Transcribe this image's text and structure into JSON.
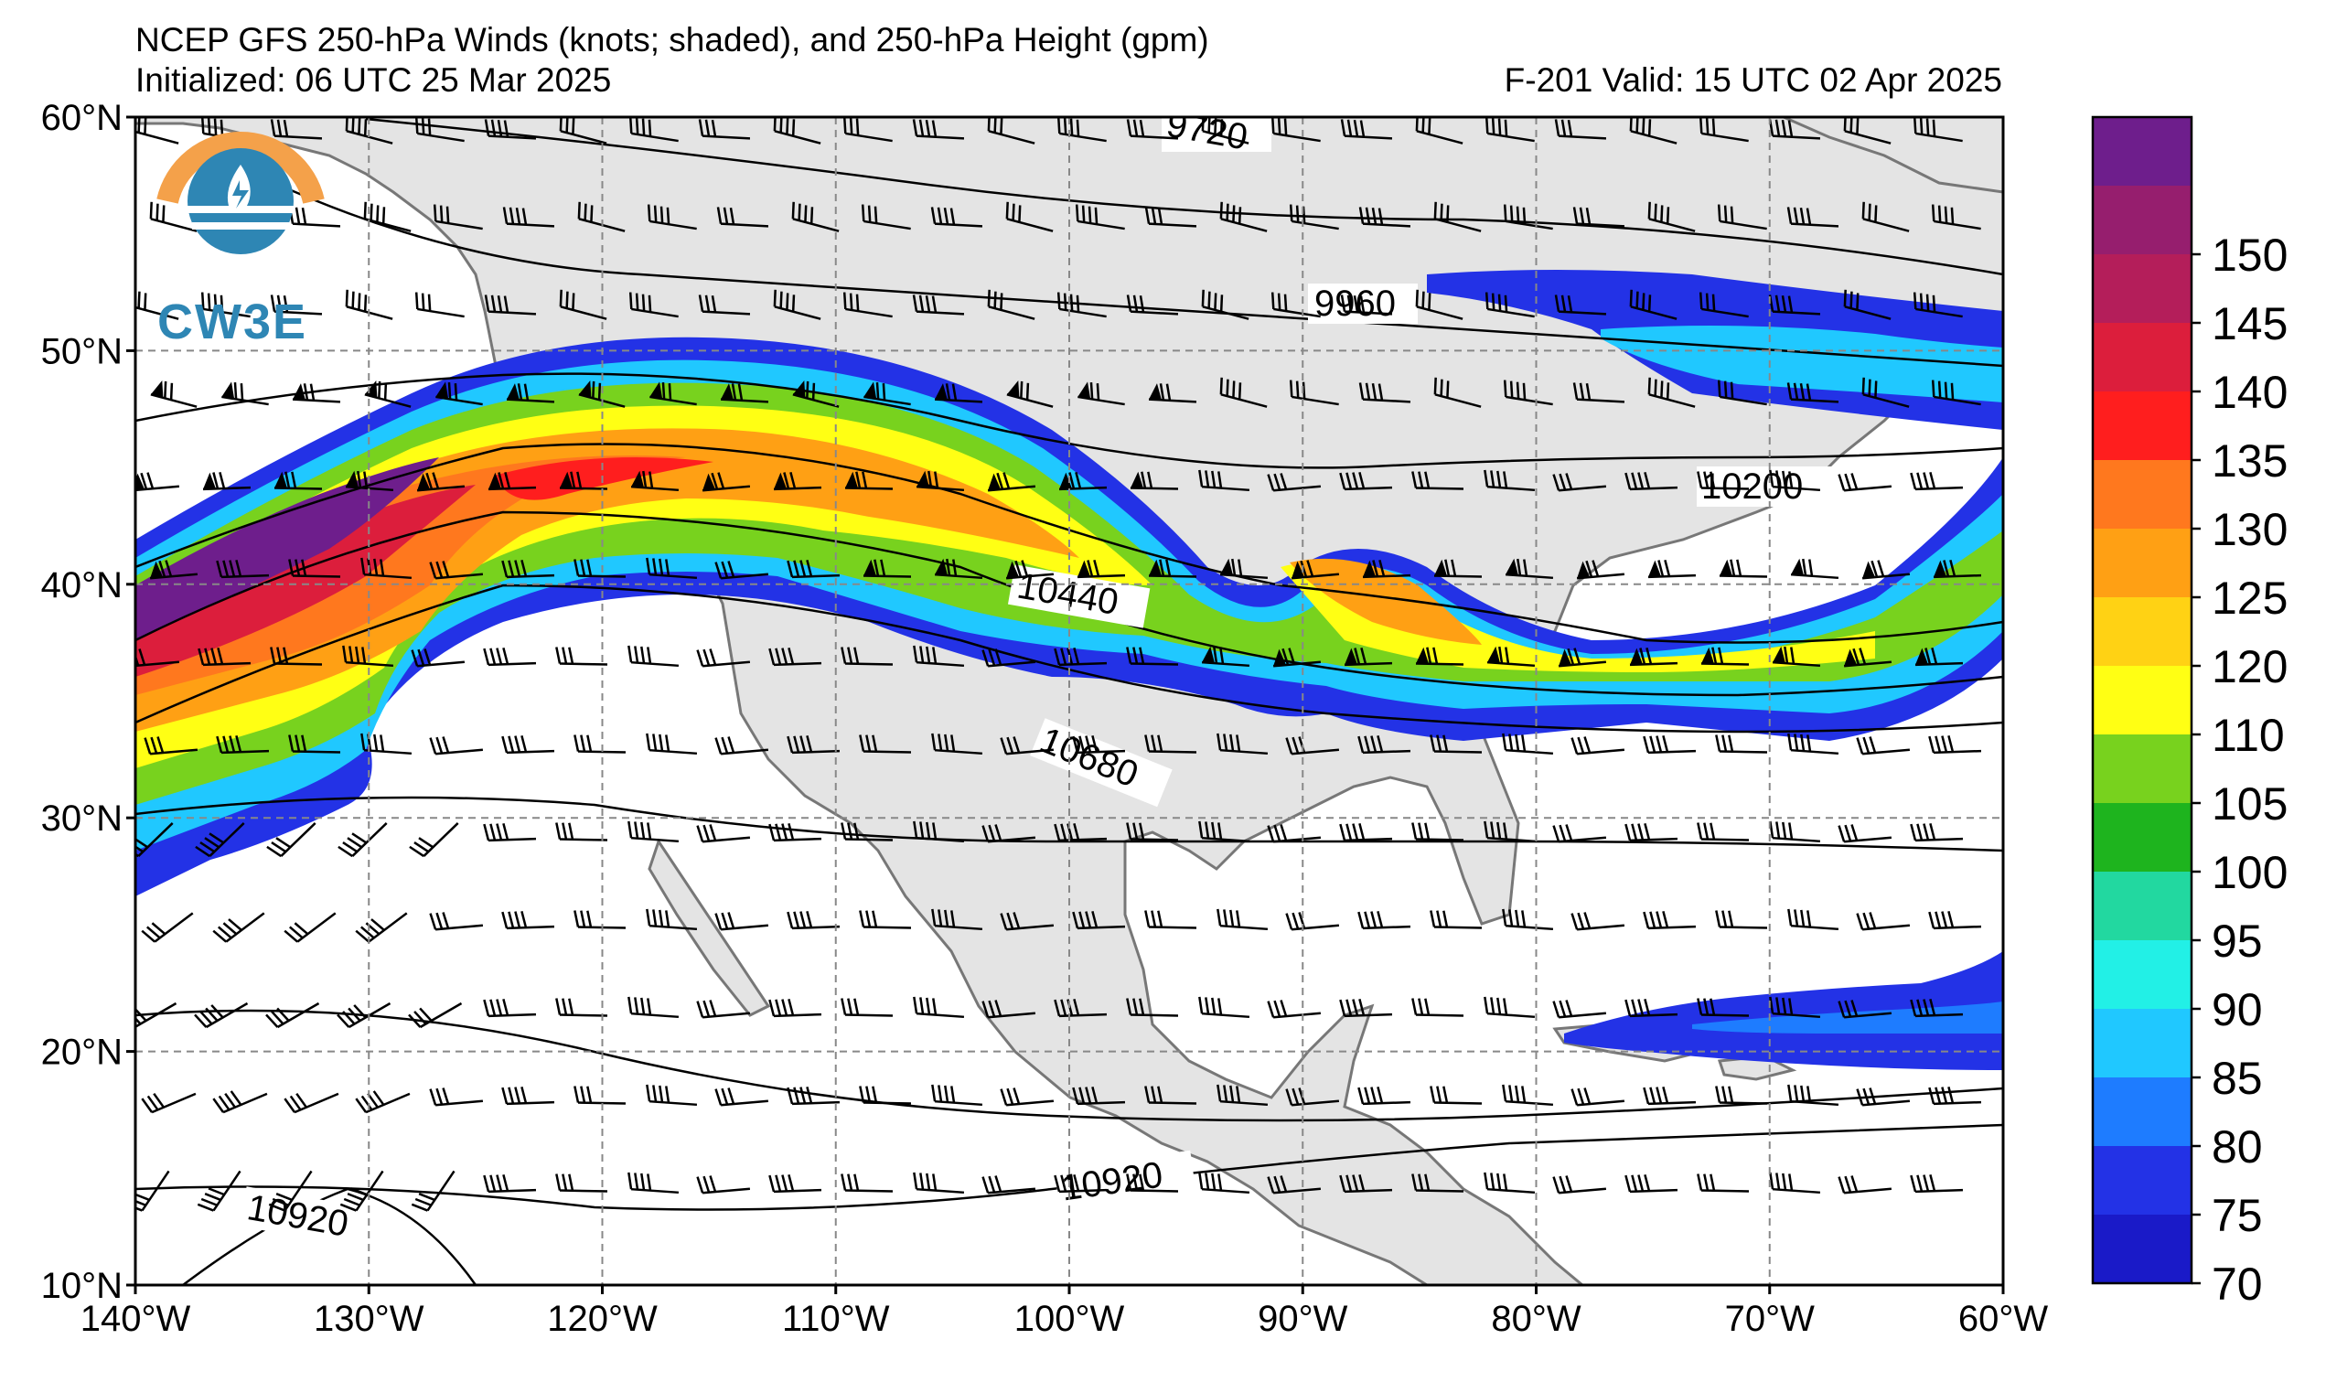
{
  "title": {
    "line1": "NCEP GFS 250-hPa Winds (knots; shaded), and 250-hPa Height (gpm)",
    "initialized": "Initialized: 06 UTC 25 Mar 2025",
    "valid": "F-201  Valid: 15 UTC 02 Apr 2025"
  },
  "logo": {
    "text": "CW3E",
    "icon": "cw3e-logo-icon"
  },
  "map": {
    "lat_labels": [
      "60°N",
      "50°N",
      "40°N",
      "30°N",
      "20°N",
      "10°N"
    ],
    "lon_labels": [
      "140°W",
      "130°W",
      "120°W",
      "110°W",
      "100°W",
      "90°W",
      "80°W",
      "70°W",
      "60°W"
    ],
    "lat_range": [
      10,
      60
    ],
    "lon_range": [
      -140,
      -60
    ],
    "gridlines": true,
    "land_color": "#e4e4e4",
    "contour_labels": [
      "9720",
      "9960",
      "10200",
      "10440",
      "10680",
      "10920",
      "10920"
    ]
  },
  "colorbar": {
    "levels": [
      "70",
      "75",
      "80",
      "85",
      "90",
      "95",
      "100",
      "105",
      "110",
      "120",
      "125",
      "130",
      "135",
      "140",
      "145",
      "150"
    ],
    "colors": [
      "#1a1ac8",
      "#2332e6",
      "#1e7cff",
      "#20c8ff",
      "#22f0e6",
      "#22d8a0",
      "#1eb41e",
      "#78d21e",
      "#ffff14",
      "#ffd214",
      "#ffa014",
      "#ff781e",
      "#ff1e1e",
      "#dc1e3c",
      "#b41e5a",
      "#961e6e",
      "#6e1e8c"
    ]
  }
}
